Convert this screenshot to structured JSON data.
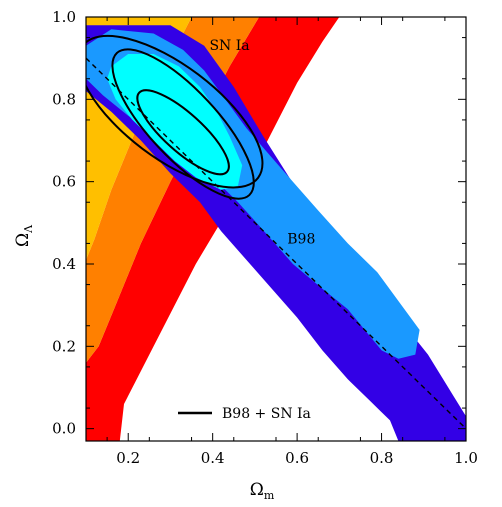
{
  "chart_data": {
    "type": "contour",
    "xlabel": "Ω",
    "xlabel_sub": "m",
    "ylabel": "Ω",
    "ylabel_sub": "Λ",
    "xlim": [
      0.1,
      1.0
    ],
    "ylim": [
      -0.03,
      1.0
    ],
    "xticks": [
      0.2,
      0.4,
      0.6,
      0.8,
      1.0
    ],
    "xtick_labels": [
      "0.2",
      "0.4",
      "0.6",
      "0.8",
      "1.0"
    ],
    "yticks": [
      0.0,
      0.2,
      0.4,
      0.6,
      0.8,
      1.0
    ],
    "ytick_labels": [
      "0.0",
      "0.2",
      "0.4",
      "0.6",
      "0.8",
      "1.0"
    ],
    "annotations": [
      {
        "text": "SN  Ia",
        "x": 0.44,
        "y": 0.92
      },
      {
        "text": "B98",
        "x": 0.61,
        "y": 0.45
      }
    ],
    "legend": {
      "label": "B98  +  SN  Ia",
      "style": "solid black line"
    },
    "flat_universe_line": {
      "style": "dashed",
      "points": [
        [
          0.1,
          0.9
        ],
        [
          1.0,
          0.0
        ]
      ]
    },
    "sn_ia_bands": [
      {
        "level": "outer",
        "color": "#ff0000",
        "polygon": [
          [
            0.1,
            -0.03
          ],
          [
            0.18,
            -0.03
          ],
          [
            0.19,
            0.06
          ],
          [
            0.26,
            0.2
          ],
          [
            0.36,
            0.4
          ],
          [
            0.43,
            0.52
          ],
          [
            0.53,
            0.7
          ],
          [
            0.6,
            0.84
          ],
          [
            0.66,
            0.94
          ],
          [
            0.7,
            1.0
          ],
          [
            0.51,
            1.0
          ],
          [
            0.44,
            0.88
          ],
          [
            0.36,
            0.72
          ],
          [
            0.3,
            0.6
          ],
          [
            0.23,
            0.45
          ],
          [
            0.17,
            0.3
          ],
          [
            0.13,
            0.2
          ],
          [
            0.1,
            0.16
          ]
        ]
      },
      {
        "level": "middle",
        "color": "#ff8000",
        "polygon": [
          [
            0.1,
            0.16
          ],
          [
            0.13,
            0.2
          ],
          [
            0.17,
            0.3
          ],
          [
            0.23,
            0.45
          ],
          [
            0.3,
            0.6
          ],
          [
            0.36,
            0.72
          ],
          [
            0.44,
            0.88
          ],
          [
            0.51,
            1.0
          ],
          [
            0.35,
            1.0
          ],
          [
            0.3,
            0.9
          ],
          [
            0.24,
            0.78
          ],
          [
            0.2,
            0.68
          ],
          [
            0.16,
            0.58
          ],
          [
            0.12,
            0.46
          ],
          [
            0.1,
            0.41
          ]
        ]
      },
      {
        "level": "inner",
        "color": "#ffbf00",
        "polygon": [
          [
            0.1,
            0.41
          ],
          [
            0.12,
            0.46
          ],
          [
            0.16,
            0.58
          ],
          [
            0.2,
            0.68
          ],
          [
            0.24,
            0.78
          ],
          [
            0.3,
            0.9
          ],
          [
            0.35,
            1.0
          ],
          [
            0.1,
            1.0
          ]
        ]
      }
    ],
    "b98_bands": [
      {
        "level": "outer",
        "color": "#3300e6",
        "polygon": [
          [
            0.1,
            0.98
          ],
          [
            0.3,
            0.98
          ],
          [
            0.38,
            0.93
          ],
          [
            0.45,
            0.83
          ],
          [
            0.52,
            0.71
          ],
          [
            0.6,
            0.58
          ],
          [
            0.68,
            0.47
          ],
          [
            0.76,
            0.37
          ],
          [
            0.84,
            0.27
          ],
          [
            0.91,
            0.18
          ],
          [
            0.97,
            0.08
          ],
          [
            1.0,
            0.03
          ],
          [
            1.0,
            -0.03
          ],
          [
            0.84,
            -0.03
          ],
          [
            0.82,
            0.02
          ],
          [
            0.77,
            0.07
          ],
          [
            0.72,
            0.12
          ],
          [
            0.66,
            0.19
          ],
          [
            0.6,
            0.27
          ],
          [
            0.54,
            0.34
          ],
          [
            0.48,
            0.41
          ],
          [
            0.42,
            0.48
          ],
          [
            0.37,
            0.55
          ],
          [
            0.3,
            0.62
          ],
          [
            0.23,
            0.7
          ],
          [
            0.16,
            0.77
          ],
          [
            0.1,
            0.82
          ]
        ]
      },
      {
        "level": "middle",
        "color": "#1a99ff",
        "polygon": [
          [
            0.1,
            0.93
          ],
          [
            0.16,
            0.97
          ],
          [
            0.26,
            0.96
          ],
          [
            0.33,
            0.92
          ],
          [
            0.38,
            0.87
          ],
          [
            0.43,
            0.8
          ],
          [
            0.48,
            0.73
          ],
          [
            0.53,
            0.67
          ],
          [
            0.59,
            0.6
          ],
          [
            0.65,
            0.53
          ],
          [
            0.72,
            0.45
          ],
          [
            0.79,
            0.38
          ],
          [
            0.84,
            0.31
          ],
          [
            0.89,
            0.24
          ],
          [
            0.88,
            0.18
          ],
          [
            0.84,
            0.17
          ],
          [
            0.8,
            0.19
          ],
          [
            0.76,
            0.24
          ],
          [
            0.72,
            0.29
          ],
          [
            0.66,
            0.34
          ],
          [
            0.59,
            0.4
          ],
          [
            0.53,
            0.47
          ],
          [
            0.46,
            0.55
          ],
          [
            0.4,
            0.61
          ],
          [
            0.34,
            0.66
          ],
          [
            0.27,
            0.71
          ],
          [
            0.2,
            0.76
          ],
          [
            0.14,
            0.81
          ],
          [
            0.1,
            0.85
          ]
        ]
      },
      {
        "level": "inner",
        "color": "#00ffff",
        "polygon": [
          [
            0.16,
            0.88
          ],
          [
            0.2,
            0.91
          ],
          [
            0.26,
            0.91
          ],
          [
            0.32,
            0.88
          ],
          [
            0.37,
            0.83
          ],
          [
            0.41,
            0.77
          ],
          [
            0.44,
            0.71
          ],
          [
            0.47,
            0.64
          ],
          [
            0.46,
            0.59
          ],
          [
            0.42,
            0.58
          ],
          [
            0.36,
            0.61
          ],
          [
            0.31,
            0.65
          ],
          [
            0.26,
            0.7
          ],
          [
            0.21,
            0.75
          ],
          [
            0.17,
            0.8
          ],
          [
            0.15,
            0.85
          ]
        ]
      }
    ],
    "combined_contours": [
      {
        "level": "outer",
        "center": [
          0.3,
          0.77
        ],
        "rx": 0.26,
        "ry": 0.11,
        "angle": -37
      },
      {
        "level": "middle",
        "center": [
          0.33,
          0.74
        ],
        "rx": 0.23,
        "ry": 0.08,
        "angle": -47
      },
      {
        "level": "inner",
        "center": [
          0.33,
          0.72
        ],
        "rx": 0.14,
        "ry": 0.045,
        "angle": -42
      }
    ]
  }
}
